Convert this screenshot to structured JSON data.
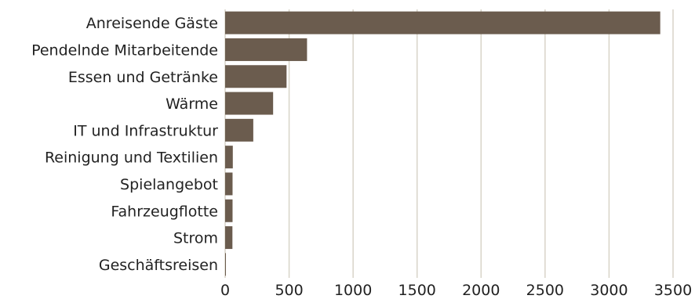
{
  "chart_data": {
    "type": "bar",
    "orientation": "horizontal",
    "categories": [
      "Anreisende Gäste",
      "Pendelnde Mitarbeitende",
      "Essen und Getränke",
      "Wärme",
      "IT und Infrastruktur",
      "Reinigung und Textilien",
      "Spielangebot",
      "Fahrzeugflotte",
      "Strom",
      "Geschäftsreisen"
    ],
    "values": [
      3400,
      640,
      480,
      375,
      220,
      60,
      58,
      58,
      57,
      5
    ],
    "xlim": [
      0,
      3500
    ],
    "xticks": [
      "0",
      "500",
      "1000",
      "1500",
      "2000",
      "2500",
      "3000",
      "3500"
    ],
    "grid": "vertical",
    "colors": {
      "bar": "#6b5c4e",
      "grid": "#d8d4c8",
      "text": "#222222"
    }
  }
}
